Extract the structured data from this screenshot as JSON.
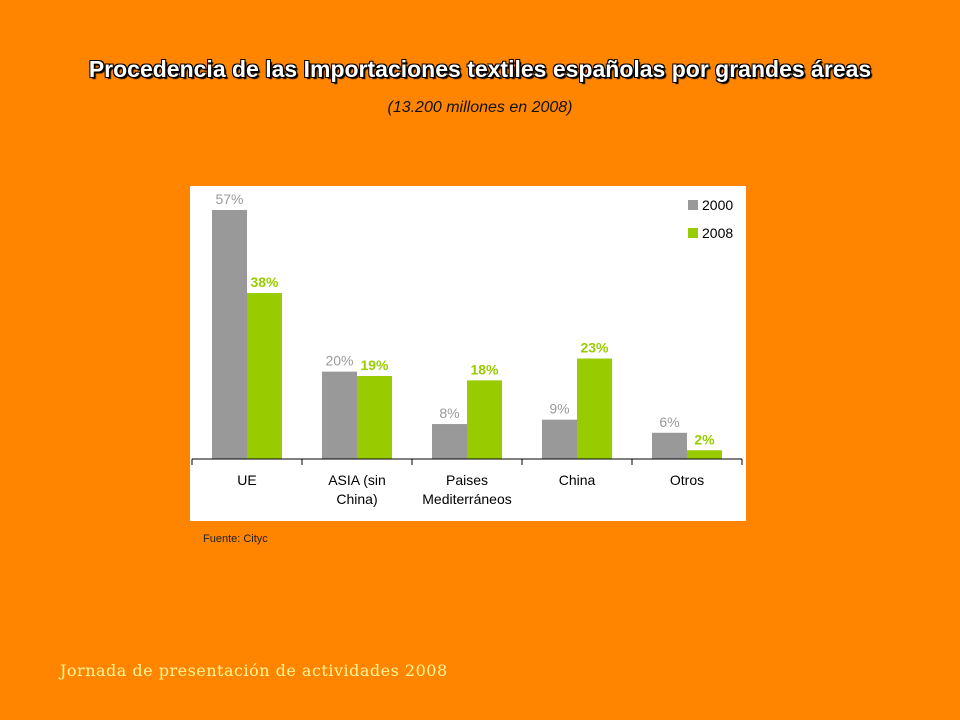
{
  "header": {
    "title": "Procedencia de las Importaciones textiles españolas por grandes áreas",
    "subtitle": "(13.200 millones en 2008)"
  },
  "source": "Fuente: Cityc",
  "footer": "Jornada de presentación de actividades 2008",
  "colors": {
    "series_2000": "#999999",
    "series_2008": "#99CC00",
    "background": "#FF8500"
  },
  "chart_data": {
    "type": "bar",
    "title": "Procedencia de las Importaciones textiles españolas por grandes áreas",
    "subtitle": "(13.200 millones en 2008)",
    "categories": [
      [
        "UE"
      ],
      [
        "ASIA (sin",
        "China)"
      ],
      [
        "Paises",
        "Mediterráneos"
      ],
      [
        "China"
      ],
      [
        "Otros"
      ]
    ],
    "series": [
      {
        "name": "2000",
        "values": [
          57,
          20,
          8,
          9,
          6
        ],
        "labels": [
          "57%",
          "20%",
          "8%",
          "9%",
          "6%"
        ]
      },
      {
        "name": "2008",
        "values": [
          38,
          19,
          18,
          23,
          2
        ],
        "labels": [
          "38%",
          "19%",
          "18%",
          "23%",
          "2%"
        ]
      }
    ],
    "ylim": [
      0,
      60
    ],
    "grid": false,
    "legend": "top-right"
  }
}
